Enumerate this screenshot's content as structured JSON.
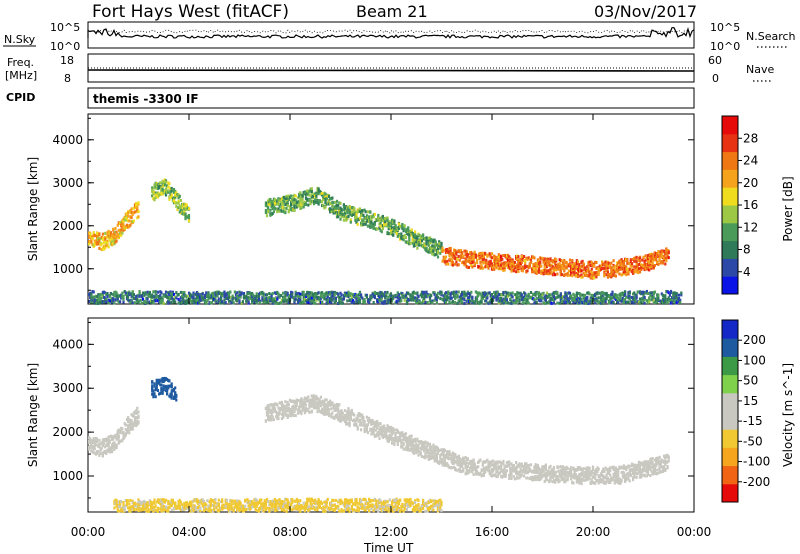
{
  "header": {
    "station": "Fort Hays West (fitACF)",
    "beam": "Beam 21",
    "date": "03/Nov/2017"
  },
  "strip_noise": {
    "left_label": "N.Sky",
    "right_label": "N.Search",
    "left_ticks": [
      "10^5",
      "10^0"
    ],
    "right_ticks": [
      "10^5",
      "10^0"
    ]
  },
  "strip_freq": {
    "left_label_1": "Freq.",
    "left_label_2": "[MHz]",
    "right_label": "Nave",
    "left_ticks": [
      "18",
      "8"
    ],
    "right_ticks": [
      "60",
      "0"
    ]
  },
  "strip_cpid": {
    "left_label": "CPID",
    "program": "themis -3300 IF"
  },
  "colors": {
    "power_scale": [
      "#0a14e6",
      "#2d49a8",
      "#2f7a58",
      "#4a9a5a",
      "#9cc846",
      "#f0dc1e",
      "#f5a31c",
      "#f07814",
      "#e83214",
      "#e60a0a"
    ],
    "velocity_scale": [
      "#e60a0a",
      "#f06414",
      "#f5a51e",
      "#f0c832",
      "#c8c8c0",
      "#c8c8c0",
      "#7fd04a",
      "#3c9a46",
      "#1e5aa0",
      "#1428c8"
    ],
    "trace": "#000000"
  },
  "chart_data": [
    {
      "type": "heatmap",
      "title": "",
      "xlabel": "Time UT",
      "ylabel": "Slant Range [km]",
      "x_ticks": [
        "00:00",
        "04:00",
        "08:00",
        "12:00",
        "16:00",
        "20:00",
        "00:00"
      ],
      "x_range_hours": [
        0,
        24
      ],
      "y_ticks": [
        "1000",
        "2000",
        "3000",
        "4000"
      ],
      "ylim": [
        180,
        4600
      ],
      "colorbar": {
        "label": "Power [dB]",
        "ticks": [
          "4",
          "8",
          "12",
          "16",
          "20",
          "24",
          "28"
        ],
        "range": [
          0,
          32
        ]
      },
      "series": [
        {
          "hours": [
            0.0,
            0.5,
            1.0,
            1.5,
            2.0
          ],
          "range_km": [
            1800,
            1650,
            1800,
            2150,
            2450
          ],
          "value": 20
        },
        {
          "hours": [
            2.5,
            3.0,
            3.5,
            4.0
          ],
          "range_km": [
            2800,
            2950,
            2600,
            2250
          ],
          "value": 14
        },
        {
          "hours": [
            7.0,
            8.0,
            9.0,
            10.0,
            11.0,
            12.0,
            13.0,
            14.0
          ],
          "range_km": [
            2450,
            2550,
            2750,
            2350,
            2200,
            2000,
            1700,
            1450
          ],
          "value": 12
        },
        {
          "hours": [
            14.0,
            15.0,
            16.0,
            17.0,
            18.0,
            19.0,
            20.0,
            21.0,
            22.0,
            23.0
          ],
          "range_km": [
            1350,
            1250,
            1200,
            1150,
            1100,
            1050,
            1000,
            1050,
            1150,
            1350
          ],
          "value": 24
        },
        {
          "hours": [
            0.0,
            4.0,
            8.0,
            12.0,
            16.0,
            20.0,
            23.5
          ],
          "range_km": [
            320,
            310,
            300,
            300,
            310,
            300,
            330
          ],
          "value": 8
        }
      ]
    },
    {
      "type": "heatmap",
      "title": "",
      "xlabel": "Time UT",
      "ylabel": "Slant Range [km]",
      "x_ticks": [
        "00:00",
        "04:00",
        "08:00",
        "12:00",
        "16:00",
        "20:00",
        "00:00"
      ],
      "x_range_hours": [
        0,
        24
      ],
      "y_ticks": [
        "1000",
        "2000",
        "3000",
        "4000"
      ],
      "ylim": [
        180,
        4600
      ],
      "colorbar": {
        "label": "Velocity [m s^-1]",
        "ticks": [
          "-200",
          "-100",
          "-50",
          "-15",
          "15",
          "50",
          "100",
          "200"
        ],
        "range": [
          -250,
          250
        ]
      },
      "series": [
        {
          "hours": [
            0.0,
            0.5,
            1.0,
            1.5,
            2.0
          ],
          "range_km": [
            1800,
            1650,
            1800,
            2150,
            2450
          ],
          "value": 0
        },
        {
          "hours": [
            2.5,
            3.0,
            3.5
          ],
          "range_km": [
            3000,
            3100,
            2900
          ],
          "value": 180
        },
        {
          "hours": [
            7.0,
            9.0,
            11.0,
            13.0,
            15.0,
            17.0,
            19.0,
            21.0,
            23.0
          ],
          "range_km": [
            2450,
            2700,
            2200,
            1700,
            1250,
            1150,
            1050,
            1050,
            1350
          ],
          "value": 0
        },
        {
          "hours": [
            1.0,
            4.0,
            8.0,
            12.0,
            14.0
          ],
          "range_km": [
            300,
            310,
            320,
            320,
            300
          ],
          "value": -60
        }
      ]
    }
  ]
}
